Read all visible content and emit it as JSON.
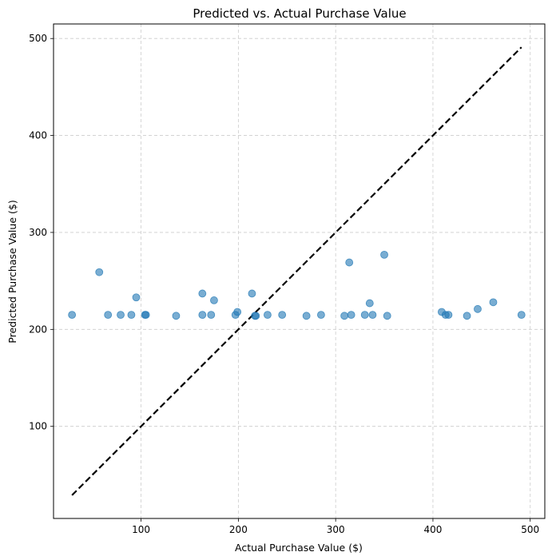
{
  "chart_data": {
    "type": "scatter",
    "title": "Predicted vs. Actual Purchase Value",
    "xlabel": "Actual Purchase Value ($)",
    "ylabel": "Predicted Purchase Value ($)",
    "xlim": [
      10,
      515
    ],
    "ylim": [
      5,
      515
    ],
    "xticks": [
      100,
      200,
      300,
      400,
      500
    ],
    "yticks": [
      100,
      200,
      300,
      400,
      500
    ],
    "grid": true,
    "point_color": "#1f77b4",
    "reference_line": {
      "from": [
        29,
        29
      ],
      "to": [
        491,
        491
      ],
      "style": "dashed",
      "color": "#000000"
    },
    "points": [
      {
        "x": 29,
        "y": 215
      },
      {
        "x": 57,
        "y": 259
      },
      {
        "x": 66,
        "y": 215
      },
      {
        "x": 79,
        "y": 215
      },
      {
        "x": 90,
        "y": 215
      },
      {
        "x": 95,
        "y": 233
      },
      {
        "x": 104,
        "y": 215
      },
      {
        "x": 105,
        "y": 215
      },
      {
        "x": 136,
        "y": 214
      },
      {
        "x": 163,
        "y": 237
      },
      {
        "x": 163,
        "y": 215
      },
      {
        "x": 172,
        "y": 215
      },
      {
        "x": 175,
        "y": 230
      },
      {
        "x": 197,
        "y": 215
      },
      {
        "x": 199,
        "y": 218
      },
      {
        "x": 214,
        "y": 237
      },
      {
        "x": 217,
        "y": 214
      },
      {
        "x": 218,
        "y": 214
      },
      {
        "x": 230,
        "y": 215
      },
      {
        "x": 245,
        "y": 215
      },
      {
        "x": 270,
        "y": 214
      },
      {
        "x": 285,
        "y": 215
      },
      {
        "x": 309,
        "y": 214
      },
      {
        "x": 314,
        "y": 269
      },
      {
        "x": 316,
        "y": 215
      },
      {
        "x": 330,
        "y": 215
      },
      {
        "x": 335,
        "y": 227
      },
      {
        "x": 338,
        "y": 215
      },
      {
        "x": 350,
        "y": 277
      },
      {
        "x": 353,
        "y": 214
      },
      {
        "x": 409,
        "y": 218
      },
      {
        "x": 413,
        "y": 215
      },
      {
        "x": 416,
        "y": 215
      },
      {
        "x": 435,
        "y": 214
      },
      {
        "x": 446,
        "y": 221
      },
      {
        "x": 462,
        "y": 228
      },
      {
        "x": 491,
        "y": 215
      }
    ]
  }
}
